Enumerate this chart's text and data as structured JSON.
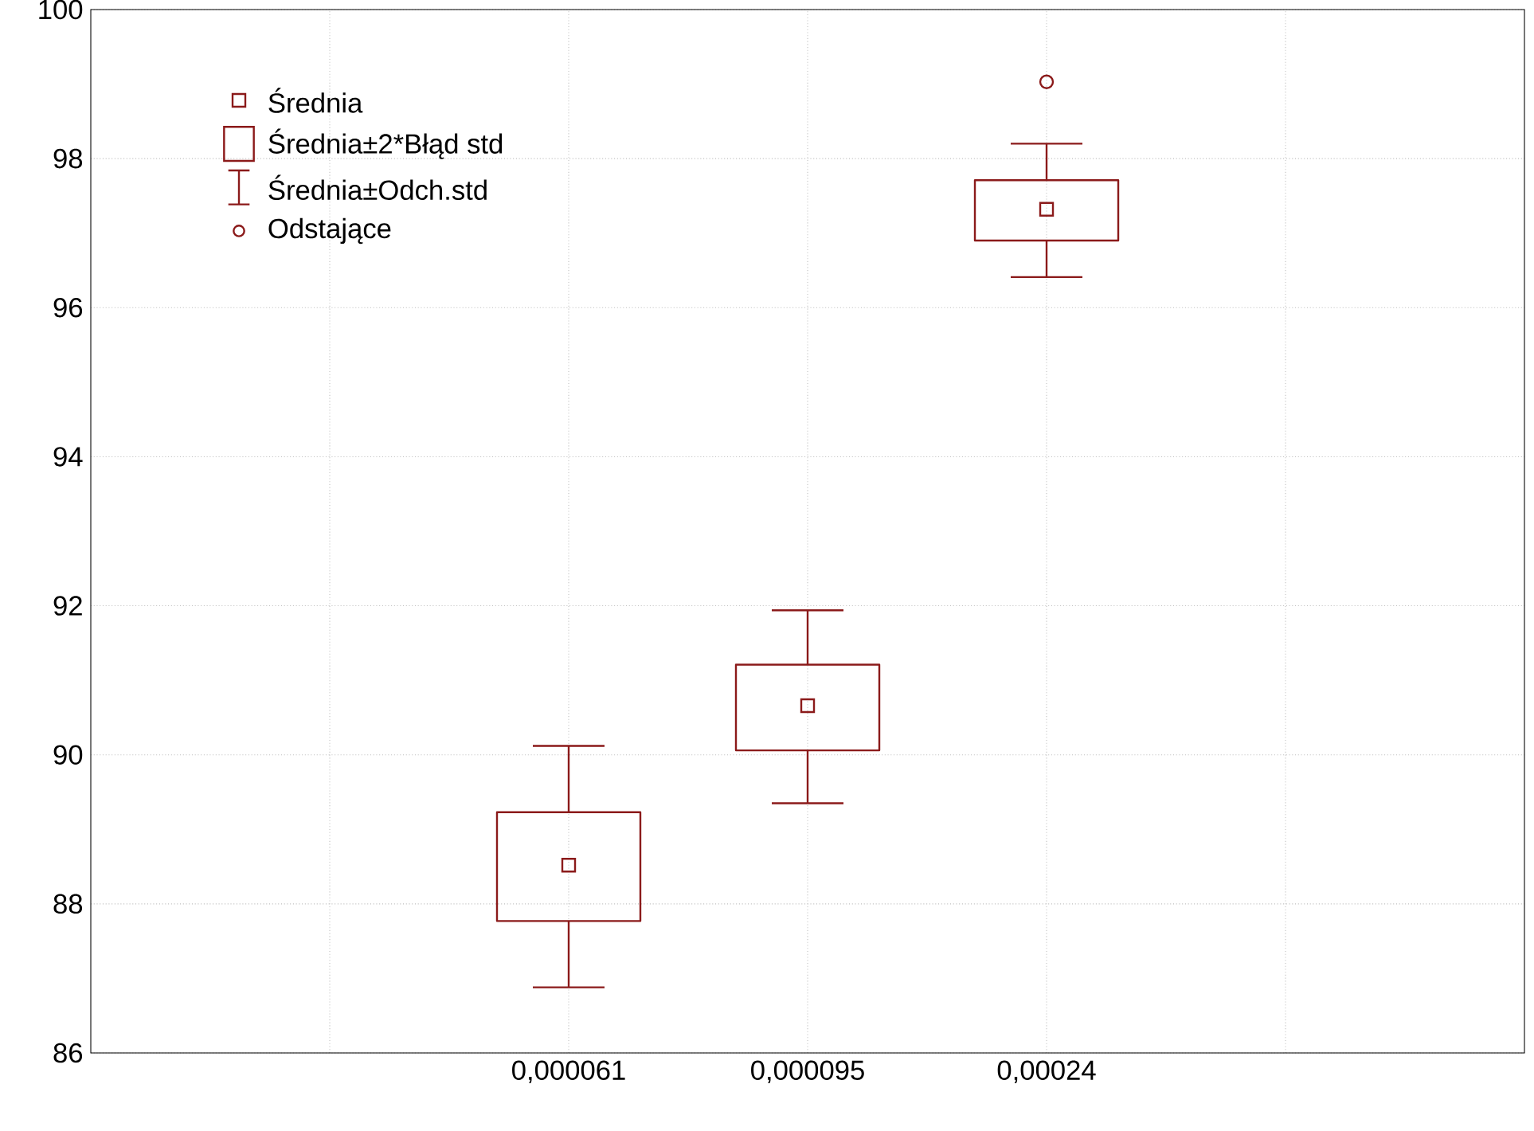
{
  "chart_data": {
    "type": "box",
    "categories": [
      null,
      "0,000061",
      "0,000095",
      "0,00024",
      null
    ],
    "boxes": [
      null,
      {
        "low": 86.88,
        "q1": 87.77,
        "median": 88.52,
        "q3": 89.23,
        "high": 90.12
      },
      {
        "low": 89.35,
        "q1": 90.06,
        "median": 90.66,
        "q3": 91.21,
        "high": 91.94
      },
      {
        "low": 96.41,
        "q1": 96.9,
        "median": 97.32,
        "q3": 97.71,
        "high": 98.2,
        "outliers": [
          99.03
        ]
      },
      null
    ],
    "color": "#8b1a1a",
    "ylim": [
      86,
      100
    ],
    "yticks": [
      86,
      88,
      90,
      92,
      94,
      96,
      98,
      100
    ],
    "grid": true,
    "annotations": [
      "Średnia",
      "Średnia±2*Błąd std",
      "Średnia±Odch.std",
      "Odstające"
    ]
  }
}
